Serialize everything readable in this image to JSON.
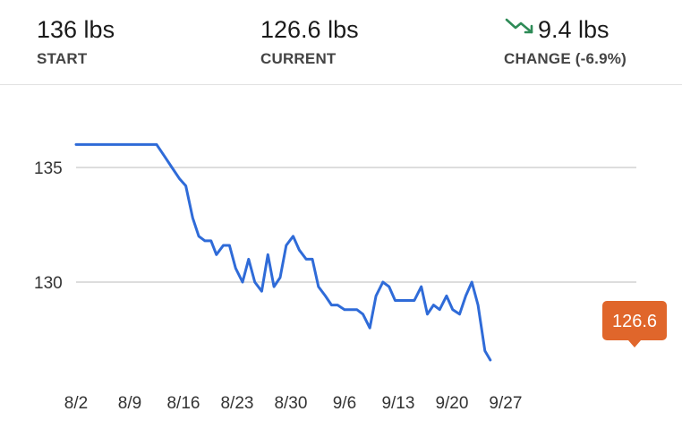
{
  "stats": {
    "start": {
      "value": "136 lbs",
      "label": "START"
    },
    "current": {
      "value": "126.6 lbs",
      "label": "CURRENT"
    },
    "change": {
      "value": "9.4 lbs",
      "label": "CHANGE (-6.9%)",
      "icon": "trending-down-icon",
      "icon_color": "#2e8b57"
    }
  },
  "colors": {
    "line": "#2f6bd8",
    "gridline": "#dddddd",
    "callout": "#e0662b"
  },
  "chart_data": {
    "type": "line",
    "title": "",
    "xlabel": "",
    "ylabel": "",
    "ylim": [
      126.0,
      137.2
    ],
    "yticks": [
      {
        "value": 130,
        "label": "130"
      },
      {
        "value": 135,
        "label": "135"
      }
    ],
    "xticks": [
      {
        "day": 0,
        "label": "8/2"
      },
      {
        "day": 7,
        "label": "8/9"
      },
      {
        "day": 14,
        "label": "8/16"
      },
      {
        "day": 21,
        "label": "8/23"
      },
      {
        "day": 28,
        "label": "8/30"
      },
      {
        "day": 35,
        "label": "9/6"
      },
      {
        "day": 42,
        "label": "9/13"
      },
      {
        "day": 49,
        "label": "9/20"
      },
      {
        "day": 56,
        "label": "9/27"
      }
    ],
    "grid": true,
    "series": [
      {
        "points": [
          [
            0,
            136.0
          ],
          [
            10.5,
            136.0
          ],
          [
            11.5,
            135.5
          ],
          [
            12.5,
            135.0
          ],
          [
            13.5,
            134.5
          ],
          [
            14.3,
            134.2
          ],
          [
            15.2,
            132.8
          ],
          [
            16,
            132.0
          ],
          [
            16.8,
            131.8
          ],
          [
            17.6,
            131.8
          ],
          [
            18.3,
            131.2
          ],
          [
            19.2,
            131.6
          ],
          [
            20,
            131.6
          ],
          [
            20.8,
            130.6
          ],
          [
            21.7,
            130.0
          ],
          [
            22.5,
            131.0
          ],
          [
            23.3,
            130.0
          ],
          [
            24.2,
            129.6
          ],
          [
            25,
            131.2
          ],
          [
            25.8,
            129.8
          ],
          [
            26.6,
            130.2
          ],
          [
            27.4,
            131.6
          ],
          [
            28.3,
            132.0
          ],
          [
            29.1,
            131.4
          ],
          [
            30,
            131.0
          ],
          [
            30.8,
            131.0
          ],
          [
            31.6,
            129.8
          ],
          [
            32.5,
            129.4
          ],
          [
            33.3,
            129.0
          ],
          [
            34.1,
            129.0
          ],
          [
            35,
            128.8
          ],
          [
            35.8,
            128.8
          ],
          [
            36.6,
            128.8
          ],
          [
            37.4,
            128.6
          ],
          [
            38.3,
            128.0
          ],
          [
            39.1,
            129.4
          ],
          [
            40,
            130.0
          ],
          [
            40.8,
            129.8
          ],
          [
            41.6,
            129.2
          ],
          [
            42.4,
            129.2
          ],
          [
            43.3,
            129.2
          ],
          [
            44.1,
            129.2
          ],
          [
            45,
            129.8
          ],
          [
            45.8,
            128.6
          ],
          [
            46.6,
            129.0
          ],
          [
            47.4,
            128.8
          ],
          [
            48.3,
            129.4
          ],
          [
            49.1,
            128.8
          ],
          [
            50,
            128.6
          ],
          [
            50.8,
            129.4
          ],
          [
            51.6,
            130.0
          ],
          [
            52.4,
            129.0
          ],
          [
            53.3,
            127.0
          ],
          [
            54.0,
            126.6
          ]
        ]
      }
    ],
    "callout": {
      "label": "126.6",
      "value": 126.6
    }
  }
}
